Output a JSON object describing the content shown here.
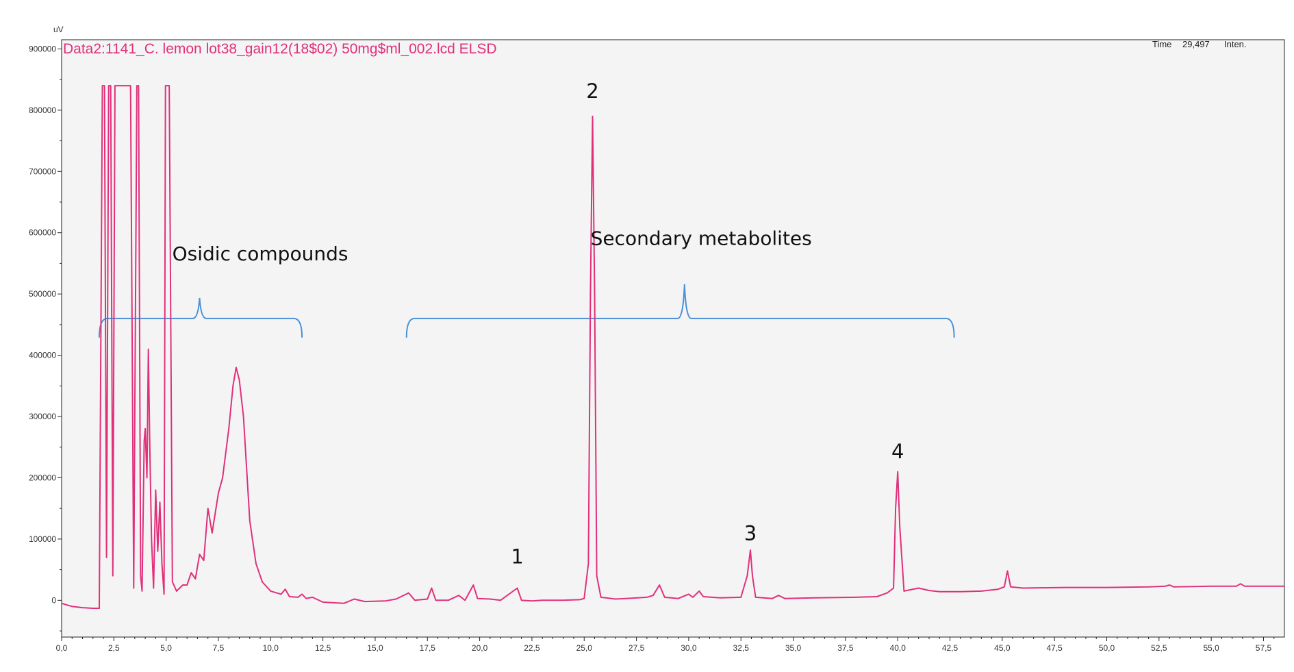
{
  "chart_data": {
    "type": "line",
    "title": "Data2:1141_C. lemon lot38_gain12(18$02) 50mg$ml_002.lcd ELSD",
    "ylabel": "uV",
    "xlabel": "",
    "xlim": [
      0,
      58.5
    ],
    "ylim": [
      -60000,
      915000
    ],
    "x_ticks": [
      0,
      2.5,
      5,
      7.5,
      10,
      12.5,
      15,
      17.5,
      20,
      22.5,
      25,
      27.5,
      30,
      32.5,
      35,
      37.5,
      40,
      42.5,
      45,
      47.5,
      50,
      52.5,
      55,
      57.5
    ],
    "x_tick_labels": [
      "0,0",
      "2,5",
      "5,0",
      "7,5",
      "10,0",
      "12,5",
      "15,0",
      "17,5",
      "20,0",
      "22,5",
      "25,0",
      "27,5",
      "30,0",
      "32,5",
      "35,0",
      "37,5",
      "40,0",
      "42,5",
      "45,0",
      "47,5",
      "50,0",
      "52,5",
      "55,0",
      "57,5"
    ],
    "y_ticks": [
      0,
      100000,
      200000,
      300000,
      400000,
      500000,
      600000,
      700000,
      800000,
      900000
    ],
    "y_tick_labels": [
      "0",
      "100000",
      "200000",
      "300000",
      "400000",
      "500000",
      "600000",
      "700000",
      "800000",
      "900000"
    ],
    "grid": false,
    "line_color": "#e0307a",
    "series": [
      {
        "points": [
          [
            0,
            -5000
          ],
          [
            0.5,
            -10000
          ],
          [
            1,
            -12000
          ],
          [
            1.5,
            -13000
          ],
          [
            1.8,
            -13000
          ],
          [
            1.95,
            840000
          ],
          [
            2.05,
            840000
          ],
          [
            2.15,
            70000
          ],
          [
            2.25,
            840000
          ],
          [
            2.35,
            840000
          ],
          [
            2.45,
            40000
          ],
          [
            2.55,
            840000
          ],
          [
            3.3,
            840000
          ],
          [
            3.45,
            20000
          ],
          [
            3.6,
            840000
          ],
          [
            3.68,
            840000
          ],
          [
            3.78,
            40000
          ],
          [
            3.85,
            15000
          ],
          [
            3.95,
            260000
          ],
          [
            4.0,
            280000
          ],
          [
            4.08,
            200000
          ],
          [
            4.15,
            410000
          ],
          [
            4.22,
            250000
          ],
          [
            4.3,
            100000
          ],
          [
            4.4,
            20000
          ],
          [
            4.5,
            180000
          ],
          [
            4.6,
            80000
          ],
          [
            4.7,
            160000
          ],
          [
            4.8,
            60000
          ],
          [
            4.9,
            10000
          ],
          [
            4.97,
            840000
          ],
          [
            5.15,
            840000
          ],
          [
            5.3,
            30000
          ],
          [
            5.5,
            15000
          ],
          [
            5.8,
            25000
          ],
          [
            6.0,
            25000
          ],
          [
            6.2,
            45000
          ],
          [
            6.4,
            35000
          ],
          [
            6.6,
            75000
          ],
          [
            6.8,
            65000
          ],
          [
            7.0,
            150000
          ],
          [
            7.2,
            110000
          ],
          [
            7.5,
            175000
          ],
          [
            7.7,
            200000
          ],
          [
            8.0,
            280000
          ],
          [
            8.2,
            350000
          ],
          [
            8.35,
            380000
          ],
          [
            8.5,
            360000
          ],
          [
            8.7,
            300000
          ],
          [
            9.0,
            130000
          ],
          [
            9.3,
            60000
          ],
          [
            9.6,
            30000
          ],
          [
            10.0,
            15000
          ],
          [
            10.5,
            10000
          ],
          [
            10.7,
            18000
          ],
          [
            10.9,
            6000
          ],
          [
            11.3,
            5000
          ],
          [
            11.5,
            10000
          ],
          [
            11.7,
            3000
          ],
          [
            12.0,
            5000
          ],
          [
            12.5,
            -3000
          ],
          [
            13.5,
            -5000
          ],
          [
            14.0,
            2000
          ],
          [
            14.5,
            -2000
          ],
          [
            15.5,
            -1000
          ],
          [
            16.0,
            2000
          ],
          [
            16.6,
            12000
          ],
          [
            16.9,
            0
          ],
          [
            17.5,
            2000
          ],
          [
            17.7,
            20000
          ],
          [
            17.9,
            0
          ],
          [
            18.5,
            0
          ],
          [
            19.0,
            8000
          ],
          [
            19.3,
            0
          ],
          [
            19.7,
            25000
          ],
          [
            19.9,
            3000
          ],
          [
            20.5,
            2000
          ],
          [
            21.0,
            0
          ],
          [
            21.8,
            20000
          ],
          [
            22.0,
            0
          ],
          [
            22.5,
            -1000
          ],
          [
            23.0,
            0
          ],
          [
            24.0,
            0
          ],
          [
            24.8,
            1000
          ],
          [
            25.0,
            3000
          ],
          [
            25.2,
            60000
          ],
          [
            25.3,
            500000
          ],
          [
            25.4,
            790000
          ],
          [
            25.5,
            500000
          ],
          [
            25.6,
            40000
          ],
          [
            25.8,
            5000
          ],
          [
            26.5,
            2000
          ],
          [
            27.0,
            3000
          ],
          [
            28.0,
            5000
          ],
          [
            28.3,
            8000
          ],
          [
            28.6,
            25000
          ],
          [
            28.85,
            5000
          ],
          [
            29.5,
            3000
          ],
          [
            30.0,
            10000
          ],
          [
            30.2,
            5000
          ],
          [
            30.5,
            15000
          ],
          [
            30.7,
            6000
          ],
          [
            31.5,
            4000
          ],
          [
            32.5,
            5000
          ],
          [
            32.8,
            40000
          ],
          [
            32.95,
            82000
          ],
          [
            33.05,
            40000
          ],
          [
            33.2,
            5000
          ],
          [
            34.0,
            3000
          ],
          [
            34.3,
            8000
          ],
          [
            34.6,
            3000
          ],
          [
            36.0,
            4000
          ],
          [
            38.0,
            5000
          ],
          [
            39.0,
            6000
          ],
          [
            39.5,
            12000
          ],
          [
            39.8,
            20000
          ],
          [
            39.9,
            150000
          ],
          [
            40.0,
            210000
          ],
          [
            40.1,
            120000
          ],
          [
            40.3,
            15000
          ],
          [
            41.0,
            20000
          ],
          [
            41.5,
            16000
          ],
          [
            42.0,
            14000
          ],
          [
            43.0,
            14000
          ],
          [
            44.0,
            15000
          ],
          [
            44.8,
            18000
          ],
          [
            45.1,
            22000
          ],
          [
            45.25,
            48000
          ],
          [
            45.4,
            22000
          ],
          [
            46.0,
            20000
          ],
          [
            48.0,
            21000
          ],
          [
            50.0,
            21000
          ],
          [
            52.0,
            22000
          ],
          [
            52.8,
            23000
          ],
          [
            53.0,
            25000
          ],
          [
            53.2,
            22000
          ],
          [
            55.0,
            23000
          ],
          [
            56.2,
            23000
          ],
          [
            56.4,
            27000
          ],
          [
            56.6,
            23000
          ],
          [
            58.0,
            23000
          ],
          [
            58.5,
            23000
          ]
        ]
      }
    ],
    "annotations": [
      {
        "text": "Osidic compounds",
        "x": 9.5,
        "y": 555000
      },
      {
        "text": "Secondary metabolites",
        "x": 30.6,
        "y": 580000
      }
    ],
    "brackets": [
      {
        "x_start": 1.8,
        "x_end": 11.5,
        "x_mid": 6.6,
        "y": 460000
      },
      {
        "x_start": 16.5,
        "x_end": 42.7,
        "x_mid": 29.8,
        "y": 460000
      }
    ],
    "peak_labels": [
      {
        "text": "1",
        "x": 21.8,
        "y": 60000
      },
      {
        "text": "2",
        "x": 25.4,
        "y": 820000
      },
      {
        "text": "3",
        "x": 32.95,
        "y": 98000
      },
      {
        "text": "4",
        "x": 40.0,
        "y": 232000
      }
    ],
    "time_readout": {
      "label": "Time",
      "value": "29,497",
      "mode": "Inten."
    }
  }
}
